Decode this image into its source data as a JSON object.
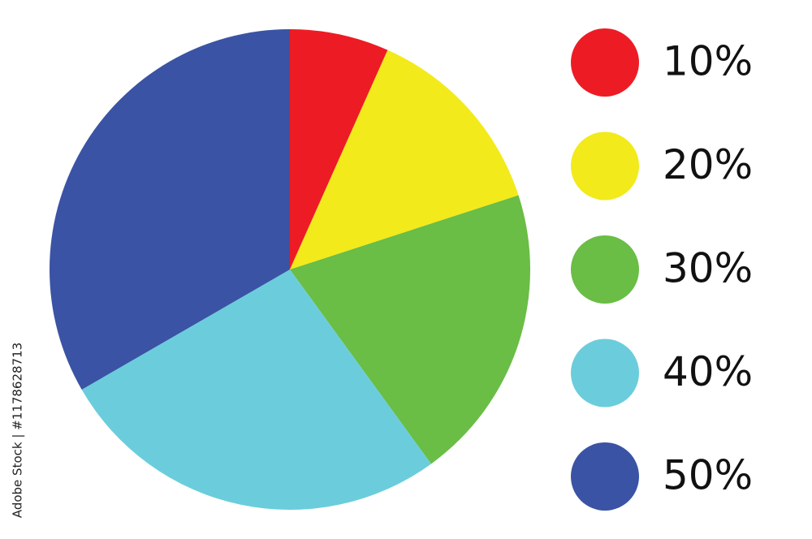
{
  "chart_data": {
    "type": "pie",
    "categories": [
      "10%",
      "20%",
      "30%",
      "40%",
      "50%"
    ],
    "values": [
      10,
      20,
      30,
      40,
      50
    ],
    "colors": [
      "#ed1c24",
      "#f2ea1a",
      "#6abd45",
      "#6bcddb",
      "#3a53a4"
    ],
    "legend": "right",
    "watermark": "Adobe Stock | #1178628713"
  }
}
